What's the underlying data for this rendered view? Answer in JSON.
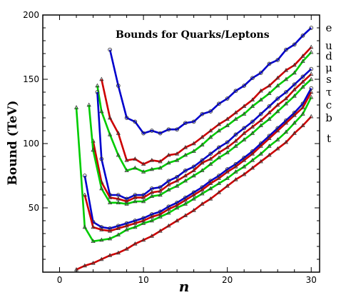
{
  "chart_data": {
    "type": "line",
    "title": "Bounds for Quarks/Leptons",
    "xlabel": "n",
    "ylabel": "Bound (TeV)",
    "xlim": [
      -2,
      31
    ],
    "ylim": [
      0,
      200
    ],
    "xticks": [
      0,
      10,
      20,
      30
    ],
    "yticks": [
      50,
      100,
      150,
      200
    ],
    "ytick_labels": [
      "50",
      "100",
      "150",
      "200"
    ],
    "grid": false,
    "legend": "right-side labels",
    "series": [
      {
        "name": "e",
        "color": "#0000cc",
        "marker": "circle",
        "x": [
          6,
          7,
          8,
          9,
          10,
          11,
          12,
          13,
          14,
          15,
          16,
          17,
          18,
          19,
          20,
          21,
          22,
          23,
          24,
          25,
          26,
          27,
          28,
          29,
          30
        ],
        "y": [
          173,
          145,
          120,
          117,
          108,
          110,
          108,
          111,
          111,
          116,
          117,
          123,
          125,
          131,
          135,
          141,
          145,
          151,
          155,
          162,
          165,
          173,
          177,
          184,
          190
        ]
      },
      {
        "name": "u",
        "color": "#cc0000",
        "marker": "triangle",
        "x": [
          5,
          6,
          7,
          8,
          9,
          10,
          11,
          12,
          13,
          14,
          15,
          16,
          17,
          18,
          19,
          20,
          21,
          22,
          23,
          24,
          25,
          26,
          27,
          28,
          29,
          30
        ],
        "y": [
          150,
          120,
          108,
          87,
          88,
          84,
          87,
          86,
          91,
          92,
          97,
          100,
          105,
          110,
          115,
          119,
          124,
          129,
          134,
          141,
          145,
          151,
          157,
          161,
          168,
          175
        ]
      },
      {
        "name": "d",
        "color": "#00cc00",
        "marker": "triangle",
        "x": [
          4.5,
          5,
          6,
          7,
          8,
          9,
          10,
          11,
          12,
          13,
          14,
          15,
          16,
          17,
          18,
          19,
          20,
          21,
          22,
          23,
          24,
          25,
          26,
          27,
          28,
          29,
          30
        ],
        "y": [
          145,
          125,
          107,
          91,
          79,
          81,
          78,
          80,
          81,
          85,
          87,
          91,
          94,
          99,
          105,
          110,
          114,
          119,
          123,
          129,
          134,
          139,
          145,
          150,
          155,
          164,
          171
        ]
      },
      {
        "name": "μ",
        "color": "#0000cc",
        "marker": "circle",
        "x": [
          4.5,
          5,
          6,
          7,
          8,
          9,
          10,
          11,
          12,
          13,
          14,
          15,
          16,
          17,
          18,
          19,
          20,
          21,
          22,
          23,
          24,
          25,
          26,
          27,
          28,
          29,
          30
        ],
        "y": [
          140,
          88,
          60,
          60,
          57,
          60,
          60,
          65,
          66,
          71,
          74,
          79,
          82,
          87,
          92,
          97,
          101,
          107,
          112,
          117,
          123,
          129,
          135,
          140,
          146,
          152,
          158
        ]
      },
      {
        "name": "s",
        "color": "#cc0000",
        "marker": "triangle",
        "x": [
          4,
          5,
          6,
          7,
          8,
          9,
          10,
          11,
          12,
          13,
          14,
          15,
          16,
          17,
          18,
          19,
          20,
          21,
          22,
          23,
          24,
          25,
          26,
          27,
          28,
          29,
          30
        ],
        "y": [
          102,
          70,
          58,
          57,
          55,
          58,
          58,
          62,
          63,
          68,
          71,
          75,
          79,
          85,
          88,
          93,
          97,
          102,
          108,
          113,
          118,
          124,
          130,
          135,
          142,
          148,
          154
        ]
      },
      {
        "name": "τ",
        "color": "#00cc00",
        "marker": "triangle",
        "x": [
          3.5,
          4,
          5,
          6,
          7,
          8,
          9,
          10,
          11,
          12,
          13,
          14,
          15,
          16,
          17,
          18,
          19,
          20,
          21,
          22,
          23,
          24,
          25,
          26,
          27,
          28,
          29,
          30
        ],
        "y": [
          130,
          95,
          65,
          54,
          54,
          53,
          55,
          55,
          59,
          60,
          64,
          67,
          71,
          75,
          79,
          84,
          89,
          93,
          98,
          103,
          108,
          114,
          119,
          125,
          131,
          137,
          144,
          150
        ]
      },
      {
        "name": "c",
        "color": "#0000cc",
        "marker": "circle",
        "x": [
          3,
          4,
          5,
          6,
          7,
          8,
          9,
          10,
          11,
          12,
          13,
          14,
          15,
          16,
          17,
          18,
          19,
          20,
          21,
          22,
          23,
          24,
          25,
          26,
          27,
          28,
          29,
          30
        ],
        "y": [
          75,
          39,
          35,
          34,
          36,
          38,
          40,
          42,
          45,
          47,
          51,
          54,
          58,
          62,
          66,
          71,
          75,
          80,
          84,
          89,
          94,
          100,
          106,
          112,
          118,
          124,
          131,
          143
        ]
      },
      {
        "name": "b",
        "color": "#cc0000",
        "marker": "triangle",
        "x": [
          3,
          4,
          5,
          6,
          7,
          8,
          9,
          10,
          11,
          12,
          13,
          14,
          15,
          16,
          17,
          18,
          19,
          20,
          21,
          22,
          23,
          24,
          25,
          26,
          27,
          28,
          29,
          30
        ],
        "y": [
          60,
          35,
          33,
          32,
          34,
          36,
          38,
          40,
          43,
          45,
          49,
          52,
          56,
          60,
          64,
          69,
          73,
          78,
          82,
          87,
          92,
          98,
          104,
          110,
          116,
          122,
          128,
          140
        ]
      },
      {
        "name": "t",
        "color": "#00cc00",
        "marker": "triangle",
        "x": [
          2,
          3,
          4,
          5,
          6,
          7,
          8,
          9,
          10,
          11,
          12,
          13,
          14,
          15,
          16,
          17,
          18,
          19,
          20,
          21,
          22,
          23,
          24,
          25,
          26,
          27,
          28,
          29,
          30
        ],
        "y": [
          128,
          35,
          24,
          25,
          26,
          29,
          33,
          35,
          38,
          40,
          43,
          46,
          50,
          53,
          57,
          61,
          65,
          69,
          73,
          78,
          82,
          87,
          92,
          98,
          103,
          109,
          116,
          123,
          136
        ]
      },
      {
        "name": "",
        "color": "#cc0000",
        "marker": "triangle",
        "x": [
          2,
          3,
          4,
          5,
          6,
          7,
          8,
          9,
          10,
          11,
          12,
          13,
          14,
          15,
          16,
          17,
          18,
          19,
          20,
          21,
          22,
          23,
          24,
          25,
          26,
          27,
          28,
          29,
          30
        ],
        "y": [
          2,
          5,
          7,
          10,
          13,
          15,
          18,
          22,
          25,
          28,
          32,
          36,
          40,
          44,
          48,
          53,
          57,
          62,
          67,
          72,
          76,
          81,
          86,
          91,
          96,
          101,
          108,
          114,
          121
        ]
      }
    ],
    "legend_labels": [
      {
        "text": "e",
        "y": 190
      },
      {
        "text": "u",
        "y": 176
      },
      {
        "text": "d",
        "y": 168
      },
      {
        "text": "μ",
        "y": 159
      },
      {
        "text": "s",
        "y": 150
      },
      {
        "text": "τ",
        "y": 140
      },
      {
        "text": "c",
        "y": 130
      },
      {
        "text": "b",
        "y": 120
      },
      {
        "text": "t",
        "y": 104
      }
    ]
  }
}
